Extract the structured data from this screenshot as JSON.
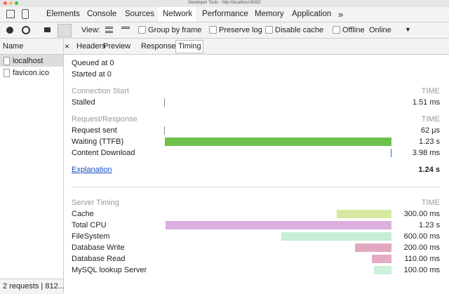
{
  "window_title": "Developer Tools - http://localhost:8082/",
  "tabs": [
    "Elements",
    "Console",
    "Sources",
    "Network",
    "Performance",
    "Memory",
    "Application"
  ],
  "toolbar": {
    "view_label": "View:",
    "checkboxes": [
      "Group by frame",
      "Preserve log",
      "Disable cache",
      "Offline"
    ],
    "throttle": "Online"
  },
  "requests": {
    "header": "Name",
    "items": [
      "localhost",
      "favicon.ico"
    ],
    "status": "2 requests | 812..."
  },
  "detail_tabs": [
    "Headers",
    "Preview",
    "Response",
    "Timing"
  ],
  "timing": {
    "queued": "Queued at 0",
    "started": "Started at 0",
    "sections": [
      {
        "title": "Connection Start",
        "column": "TIME",
        "rows": [
          {
            "label": "Stalled",
            "time": "1.51 ms"
          }
        ]
      },
      {
        "title": "Request/Response",
        "column": "TIME",
        "rows": [
          {
            "label": "Request sent",
            "time": "62 μs"
          },
          {
            "label": "Waiting (TTFB)",
            "time": "1.23 s"
          },
          {
            "label": "Content Download",
            "time": "3.98 ms"
          }
        ]
      }
    ],
    "explanation": "Explanation",
    "total": "1.24 s",
    "server": {
      "title": "Server Timing",
      "column": "TIME",
      "rows": [
        {
          "label": "Cache",
          "time": "300.00 ms"
        },
        {
          "label": "Total CPU",
          "time": "1.23 s"
        },
        {
          "label": "FileSystem",
          "time": "600.00 ms"
        },
        {
          "label": "Database Write",
          "time": "200.00 ms"
        },
        {
          "label": "Database Read",
          "time": "110.00 ms"
        },
        {
          "label": "MySQL lookup Server",
          "time": "100.00 ms"
        }
      ]
    }
  }
}
